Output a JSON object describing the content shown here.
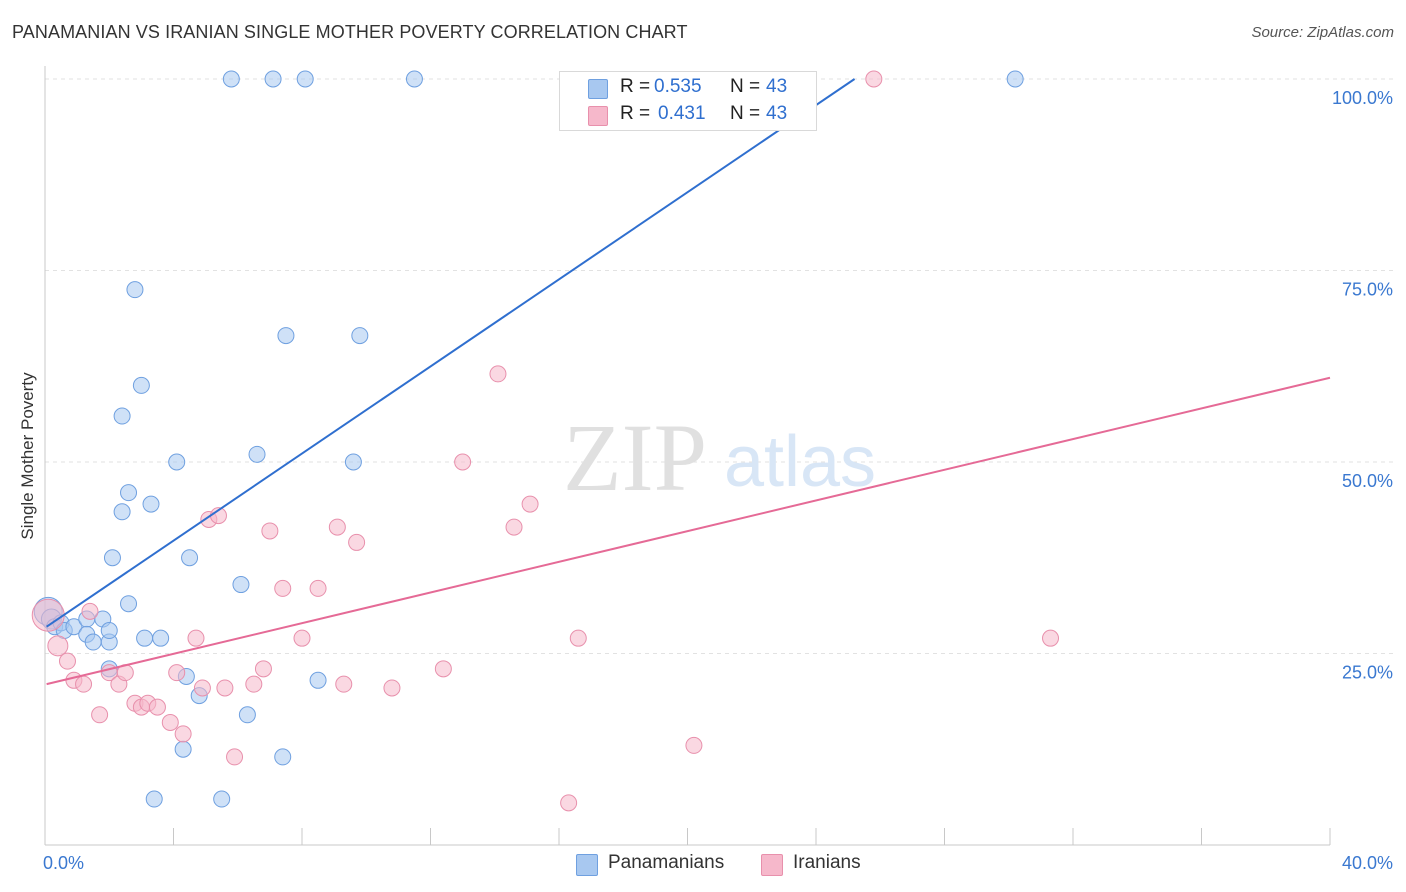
{
  "title": "PANAMANIAN VS IRANIAN SINGLE MOTHER POVERTY CORRELATION CHART",
  "source": "Source: ZipAtlas.com",
  "watermark": {
    "zip": "ZIP",
    "atlas": "atlas"
  },
  "colors": {
    "blue_fill": "#a8c8f0",
    "blue_stroke": "#6fa0e0",
    "blue_line": "#2f6fcf",
    "pink_fill": "#f6b8cb",
    "pink_stroke": "#e890ac",
    "pink_line": "#e56a96",
    "axis_text": "#3a78d0",
    "grid": "#e2e2e2"
  },
  "legend": {
    "rows": [
      {
        "r_label": "R =",
        "r_value": "0.535",
        "n_label": "N =",
        "n_value": "43",
        "color": "blue"
      },
      {
        "r_label": "R =",
        "r_value": "0.431",
        "n_label": "N =",
        "n_value": "43",
        "color": "pink"
      }
    ]
  },
  "bottom_legend": {
    "blue": "Panamanians",
    "pink": "Iranians"
  },
  "chart_data": {
    "type": "scatter",
    "xlabel": "",
    "ylabel": "Single Mother Poverty",
    "xlim": [
      0,
      40
    ],
    "ylim": [
      0,
      102
    ],
    "x_tick_labels": [
      "0.0%",
      "40.0%"
    ],
    "y_ticks": [
      25,
      50,
      75,
      100
    ],
    "y_tick_labels": [
      "25.0%",
      "50.0%",
      "75.0%",
      "100.0%"
    ],
    "grid": true,
    "legend_position": "top-center",
    "series": [
      {
        "name": "Panamanians",
        "color": "blue",
        "points": [
          [
            0.1,
            30.5,
            14
          ],
          [
            0.2,
            29.5,
            10
          ],
          [
            0.3,
            28.5,
            8
          ],
          [
            0.5,
            29.0,
            8
          ],
          [
            0.6,
            28.0,
            8
          ],
          [
            0.9,
            28.5,
            8
          ],
          [
            1.3,
            29.5,
            8
          ],
          [
            1.3,
            27.5,
            8
          ],
          [
            1.5,
            26.5,
            8
          ],
          [
            1.8,
            29.5,
            8
          ],
          [
            2.0,
            23.0,
            8
          ],
          [
            2.0,
            26.5,
            8
          ],
          [
            2.0,
            28.0,
            8
          ],
          [
            2.1,
            37.5,
            8
          ],
          [
            2.4,
            56.0,
            8
          ],
          [
            2.4,
            43.5,
            8
          ],
          [
            2.6,
            46.0,
            8
          ],
          [
            2.6,
            31.5,
            8
          ],
          [
            2.8,
            72.5,
            8
          ],
          [
            3.0,
            60.0,
            8
          ],
          [
            3.1,
            27.0,
            8
          ],
          [
            3.3,
            44.5,
            8
          ],
          [
            3.4,
            6.0,
            8
          ],
          [
            3.6,
            27.0,
            8
          ],
          [
            4.1,
            50.0,
            8
          ],
          [
            4.3,
            12.5,
            8
          ],
          [
            4.4,
            22.0,
            8
          ],
          [
            4.5,
            37.5,
            8
          ],
          [
            4.8,
            19.5,
            8
          ],
          [
            5.5,
            6.0,
            8
          ],
          [
            5.8,
            100.0,
            8
          ],
          [
            6.1,
            34.0,
            8
          ],
          [
            6.3,
            17.0,
            8
          ],
          [
            6.6,
            51.0,
            8
          ],
          [
            7.1,
            100.0,
            8
          ],
          [
            7.4,
            11.5,
            8
          ],
          [
            7.5,
            66.5,
            8
          ],
          [
            8.1,
            100.0,
            8
          ],
          [
            8.5,
            21.5,
            8
          ],
          [
            9.6,
            50.0,
            8
          ],
          [
            9.8,
            66.5,
            8
          ],
          [
            11.5,
            100.0,
            8
          ],
          [
            30.2,
            100.0,
            8
          ]
        ]
      },
      {
        "name": "Iranians",
        "color": "pink",
        "points": [
          [
            0.1,
            30.0,
            16
          ],
          [
            0.4,
            26.0,
            10
          ],
          [
            0.7,
            24.0,
            8
          ],
          [
            0.9,
            21.5,
            8
          ],
          [
            1.2,
            21.0,
            8
          ],
          [
            1.4,
            30.5,
            8
          ],
          [
            1.7,
            17.0,
            8
          ],
          [
            2.0,
            22.5,
            8
          ],
          [
            2.3,
            21.0,
            8
          ],
          [
            2.5,
            22.5,
            8
          ],
          [
            2.8,
            18.5,
            8
          ],
          [
            3.0,
            18.0,
            8
          ],
          [
            3.2,
            18.5,
            8
          ],
          [
            3.5,
            18.0,
            8
          ],
          [
            3.9,
            16.0,
            8
          ],
          [
            4.1,
            22.5,
            8
          ],
          [
            4.3,
            14.5,
            8
          ],
          [
            4.7,
            27.0,
            8
          ],
          [
            4.9,
            20.5,
            8
          ],
          [
            5.1,
            42.5,
            8
          ],
          [
            5.4,
            43.0,
            8
          ],
          [
            5.6,
            20.5,
            8
          ],
          [
            5.9,
            11.5,
            8
          ],
          [
            6.5,
            21.0,
            8
          ],
          [
            6.8,
            23.0,
            8
          ],
          [
            7.0,
            41.0,
            8
          ],
          [
            7.4,
            33.5,
            8
          ],
          [
            8.0,
            27.0,
            8
          ],
          [
            8.5,
            33.5,
            8
          ],
          [
            9.1,
            41.5,
            8
          ],
          [
            9.3,
            21.0,
            8
          ],
          [
            9.7,
            39.5,
            8
          ],
          [
            10.8,
            20.5,
            8
          ],
          [
            12.4,
            23.0,
            8
          ],
          [
            13.0,
            50.0,
            8
          ],
          [
            14.1,
            61.5,
            8
          ],
          [
            14.6,
            41.5,
            8
          ],
          [
            15.1,
            44.5,
            8
          ],
          [
            16.3,
            5.5,
            8
          ],
          [
            16.6,
            27.0,
            8
          ],
          [
            20.2,
            13.0,
            8
          ],
          [
            25.8,
            100.0,
            8
          ],
          [
            31.3,
            27.0,
            8
          ]
        ]
      }
    ],
    "trendlines": [
      {
        "series": "Panamanians",
        "x": [
          0.05,
          25.2
        ],
        "y": [
          28.5,
          100.0
        ]
      },
      {
        "series": "Iranians",
        "x": [
          0.05,
          40.0
        ],
        "y": [
          21.0,
          61.0
        ]
      }
    ]
  }
}
